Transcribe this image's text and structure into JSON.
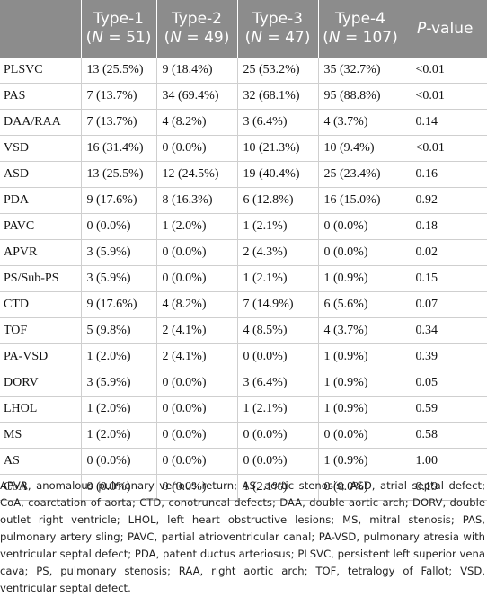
{
  "header": {
    "col0": "",
    "type1": {
      "label": "Type-1",
      "n": "(N = 51)"
    },
    "type2": {
      "label": "Type-2",
      "n": "(N = 49)"
    },
    "type3": {
      "label": "Type-3",
      "n": "(N = 47)"
    },
    "type4": {
      "label": "Type-4",
      "n": "(N = 107)"
    },
    "pvalue": {
      "italic": "P",
      "rest": "-value"
    }
  },
  "rows": [
    {
      "label": "PLSVC",
      "t1": "13 (25.5%)",
      "t2": "9 (18.4%)",
      "t3": "25 (53.2%)",
      "t4": "35 (32.7%)",
      "p": "<0.01"
    },
    {
      "label": "PAS",
      "t1": "7 (13.7%)",
      "t2": "34 (69.4%)",
      "t3": "32 (68.1%)",
      "t4": "95 (88.8%)",
      "p": "<0.01"
    },
    {
      "label": "DAA/RAA",
      "t1": "7 (13.7%)",
      "t2": "4 (8.2%)",
      "t3": "3 (6.4%)",
      "t4": "4 (3.7%)",
      "p": "0.14"
    },
    {
      "label": "VSD",
      "t1": "16 (31.4%)",
      "t2": "0 (0.0%)",
      "t3": "10 (21.3%)",
      "t4": "10 (9.4%)",
      "p": "<0.01"
    },
    {
      "label": "ASD",
      "t1": "13 (25.5%)",
      "t2": "12 (24.5%)",
      "t3": "19 (40.4%)",
      "t4": "25 (23.4%)",
      "p": "0.16"
    },
    {
      "label": "PDA",
      "t1": "9 (17.6%)",
      "t2": "8 (16.3%)",
      "t3": "6 (12.8%)",
      "t4": "16 (15.0%)",
      "p": "0.92"
    },
    {
      "label": "PAVC",
      "t1": "0 (0.0%)",
      "t2": "1 (2.0%)",
      "t3": "1 (2.1%)",
      "t4": "0 (0.0%)",
      "p": "0.18"
    },
    {
      "label": "APVR",
      "t1": "3 (5.9%)",
      "t2": "0 (0.0%)",
      "t3": "2 (4.3%)",
      "t4": "0 (0.0%)",
      "p": "0.02"
    },
    {
      "label": "PS/Sub-PS",
      "t1": "3 (5.9%)",
      "t2": "0 (0.0%)",
      "t3": "1 (2.1%)",
      "t4": "1 (0.9%)",
      "p": "0.15"
    },
    {
      "label": "CTD",
      "t1": "9 (17.6%)",
      "t2": "4 (8.2%)",
      "t3": "7 (14.9%)",
      "t4": "6 (5.6%)",
      "p": "0.07"
    },
    {
      "label": "TOF",
      "t1": "5 (9.8%)",
      "t2": "2 (4.1%)",
      "t3": "4 (8.5%)",
      "t4": "4 (3.7%)",
      "p": "0.34"
    },
    {
      "label": "PA-VSD",
      "t1": "1 (2.0%)",
      "t2": "2 (4.1%)",
      "t3": "0 (0.0%)",
      "t4": "1 (0.9%)",
      "p": "0.39"
    },
    {
      "label": "DORV",
      "t1": "3 (5.9%)",
      "t2": "0 (0.0%)",
      "t3": "3 (6.4%)",
      "t4": "1 (0.9%)",
      "p": "0.05"
    },
    {
      "label": "LHOL",
      "t1": "1 (2.0%)",
      "t2": "0 (0.0%)",
      "t3": "1 (2.1%)",
      "t4": "1 (0.9%)",
      "p": "0.59"
    },
    {
      "label": "MS",
      "t1": "1 (2.0%)",
      "t2": "0 (0.0%)",
      "t3": "0 (0.0%)",
      "t4": "0 (0.0%)",
      "p": "0.58"
    },
    {
      "label": "AS",
      "t1": "0 (0.0%)",
      "t2": "0 (0.0%)",
      "t3": "0 (0.0%)",
      "t4": "1 (0.9%)",
      "p": "1.00"
    },
    {
      "label": "CoA",
      "t1": "0 (0.0%)",
      "t2": "0 (0.0%)",
      "t3": "1 (2.1%)",
      "t4": "0 (0.0%)",
      "p": "0.19"
    }
  ],
  "footnote": "APVR, anomalous pulmonary venous return; AS, aortic stenosis; ASD, atrial septal defect; CoA, coarctation of aorta; CTD, conotruncal defects; DAA, double aortic arch; DORV, double outlet right ventricle; LHOL, left heart obstructive lesions; MS, mitral stenosis; PAS, pulmonary artery sling; PAVC, partial atrioventricular canal; PA-VSD, pulmonary atresia with ventricular septal defect; PDA, patent ductus arteriosus; PLSVC, persistent left superior vena cava; PS, pulmonary stenosis; RAA, right aortic arch; TOF, tetralogy of Fallot; VSD, ventricular septal defect."
}
